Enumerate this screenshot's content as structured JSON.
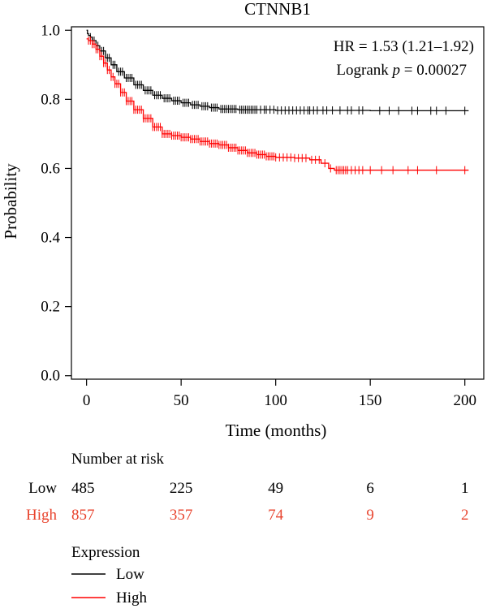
{
  "chart_data": {
    "type": "line",
    "title": "CTNNB1",
    "xlabel": "Time (months)",
    "ylabel": "Probability",
    "xlim": [
      -8,
      210
    ],
    "ylim": [
      -0.01,
      1.01
    ],
    "x_ticks": [
      0,
      50,
      100,
      150,
      200
    ],
    "y_ticks": [
      "0.0",
      "0.2",
      "0.4",
      "0.6",
      "0.8",
      "1.0"
    ],
    "x_tick_labels": [
      "0",
      "50",
      "100",
      "150",
      "200"
    ],
    "grid": false,
    "annotations": {
      "hr": "HR = 1.53 (1.21–1.92)",
      "logrank_prefix": "Logrank ",
      "logrank_p": "p",
      "logrank_suffix": " = 0.00027"
    },
    "series": [
      {
        "name": "Low",
        "color": "#000000",
        "points": [
          [
            0,
            1.0
          ],
          [
            0.5,
            0.99
          ],
          [
            1,
            0.985
          ],
          [
            2,
            0.98
          ],
          [
            3,
            0.97
          ],
          [
            5,
            0.955
          ],
          [
            7,
            0.94
          ],
          [
            10,
            0.92
          ],
          [
            13,
            0.9
          ],
          [
            16,
            0.88
          ],
          [
            20,
            0.862
          ],
          [
            25,
            0.842
          ],
          [
            30,
            0.826
          ],
          [
            35,
            0.812
          ],
          [
            40,
            0.803
          ],
          [
            45,
            0.796
          ],
          [
            50,
            0.79
          ],
          [
            55,
            0.784
          ],
          [
            60,
            0.78
          ],
          [
            65,
            0.776
          ],
          [
            70,
            0.772
          ],
          [
            80,
            0.77
          ],
          [
            100,
            0.768
          ],
          [
            150,
            0.767
          ],
          [
            202,
            0.767
          ]
        ],
        "censor_x": [
          2,
          3,
          4,
          6,
          8,
          9,
          11,
          12,
          14,
          15,
          17,
          18,
          19,
          21,
          22,
          23,
          24,
          26,
          27,
          28,
          29,
          31,
          32,
          33,
          34,
          36,
          37,
          38,
          39,
          41,
          42,
          43,
          44,
          46,
          47,
          48,
          49,
          51,
          52,
          53,
          54,
          56,
          57,
          58,
          59,
          61,
          62,
          63,
          64,
          66,
          67,
          68,
          69,
          71,
          72,
          73,
          74,
          75,
          76,
          77,
          78,
          79,
          81,
          82,
          83,
          84,
          85,
          86,
          87,
          88,
          89,
          90,
          92,
          94,
          95,
          97,
          99,
          101,
          103,
          105,
          107,
          109,
          111,
          113,
          115,
          117,
          118,
          120,
          122,
          125,
          127,
          130,
          134,
          138,
          140,
          144,
          146,
          155,
          160,
          165,
          172,
          175,
          182,
          185,
          190,
          200
        ]
      },
      {
        "name": "High",
        "color": "#ff0000",
        "points": [
          [
            0,
            0.975
          ],
          [
            1,
            0.97
          ],
          [
            3,
            0.96
          ],
          [
            5,
            0.945
          ],
          [
            7,
            0.925
          ],
          [
            9,
            0.905
          ],
          [
            11,
            0.885
          ],
          [
            13,
            0.865
          ],
          [
            15,
            0.845
          ],
          [
            18,
            0.82
          ],
          [
            21,
            0.795
          ],
          [
            25,
            0.77
          ],
          [
            30,
            0.745
          ],
          [
            35,
            0.72
          ],
          [
            40,
            0.7
          ],
          [
            45,
            0.695
          ],
          [
            50,
            0.69
          ],
          [
            55,
            0.685
          ],
          [
            60,
            0.678
          ],
          [
            65,
            0.672
          ],
          [
            70,
            0.668
          ],
          [
            75,
            0.66
          ],
          [
            80,
            0.652
          ],
          [
            85,
            0.645
          ],
          [
            90,
            0.64
          ],
          [
            95,
            0.635
          ],
          [
            100,
            0.632
          ],
          [
            110,
            0.63
          ],
          [
            118,
            0.625
          ],
          [
            124,
            0.615
          ],
          [
            128,
            0.6
          ],
          [
            131,
            0.595
          ],
          [
            202,
            0.595
          ]
        ],
        "censor_x": [
          1,
          2,
          3,
          4,
          5,
          6,
          7,
          8,
          9,
          10,
          11,
          12,
          13,
          14,
          15,
          16,
          17,
          18,
          19,
          20,
          21,
          22,
          23,
          24,
          25,
          26,
          27,
          28,
          29,
          30,
          31,
          32,
          33,
          34,
          35,
          36,
          37,
          38,
          39,
          40,
          41,
          42,
          43,
          44,
          45,
          46,
          47,
          48,
          49,
          50,
          51,
          52,
          53,
          54,
          55,
          56,
          57,
          58,
          59,
          60,
          61,
          62,
          63,
          64,
          65,
          66,
          67,
          68,
          69,
          70,
          71,
          72,
          73,
          74,
          75,
          76,
          77,
          78,
          79,
          80,
          81,
          82,
          83,
          84,
          85,
          86,
          87,
          88,
          89,
          90,
          91,
          92,
          93,
          94,
          95,
          96,
          97,
          98,
          99,
          100,
          102,
          104,
          106,
          108,
          110,
          112,
          114,
          116,
          119,
          121,
          123,
          126,
          129,
          132,
          133,
          134,
          135,
          136,
          137,
          138,
          140,
          142,
          144,
          146,
          150,
          156,
          162,
          170,
          175,
          185,
          200
        ]
      }
    ]
  },
  "risk_table": {
    "header": "Number at risk",
    "rows": [
      {
        "label": "Low",
        "color": "#000000",
        "values": [
          "485",
          "225",
          "49",
          "6",
          "1"
        ]
      },
      {
        "label": "High",
        "color": "#e8452f",
        "values": [
          "857",
          "357",
          "74",
          "9",
          "2"
        ]
      }
    ]
  },
  "legend": {
    "title": "Expression",
    "items": [
      {
        "label": "Low",
        "color": "#000000"
      },
      {
        "label": "High",
        "color": "#ff0000"
      }
    ]
  }
}
